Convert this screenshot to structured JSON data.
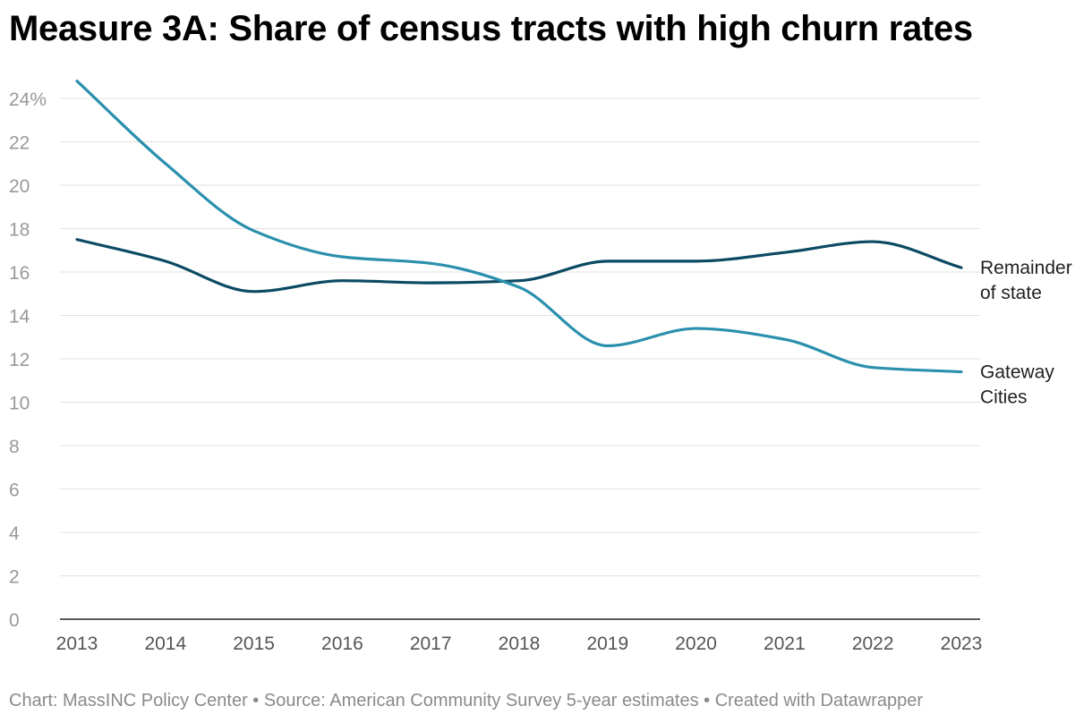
{
  "title": "Measure 3A: Share of census tracts with high churn rates",
  "footer": "Chart: MassINC Policy Center • Source: American Community Survey 5-year estimates • Created with Datawrapper",
  "chart_data": {
    "type": "line",
    "title": "Measure 3A: Share of census tracts with high churn rates",
    "xlabel": "",
    "ylabel": "",
    "x": [
      2013,
      2014,
      2015,
      2016,
      2017,
      2018,
      2019,
      2020,
      2021,
      2022,
      2023
    ],
    "ylim": [
      0,
      24
    ],
    "y_ticks": [
      0,
      2,
      4,
      6,
      8,
      10,
      12,
      14,
      16,
      18,
      20,
      22,
      24
    ],
    "y_tick_labels": [
      "0",
      "2",
      "4",
      "6",
      "8",
      "10",
      "12",
      "14",
      "16",
      "18",
      "20",
      "22",
      "24%"
    ],
    "grid": true,
    "legend": "direct labels at line ends (right)",
    "series": [
      {
        "name": "Remainder of state",
        "label_lines": [
          "Remainder",
          "of state"
        ],
        "color": "#0b4a63",
        "values": [
          17.5,
          16.5,
          15.1,
          15.6,
          15.5,
          15.6,
          16.5,
          16.5,
          16.9,
          17.4,
          16.2
        ]
      },
      {
        "name": "Gateway Cities",
        "label_lines": [
          "Gateway",
          "Cities"
        ],
        "color": "#2a90ad",
        "values": [
          24.8,
          21.0,
          17.9,
          16.7,
          16.4,
          15.3,
          12.6,
          13.4,
          12.9,
          11.6,
          11.4
        ]
      }
    ]
  }
}
